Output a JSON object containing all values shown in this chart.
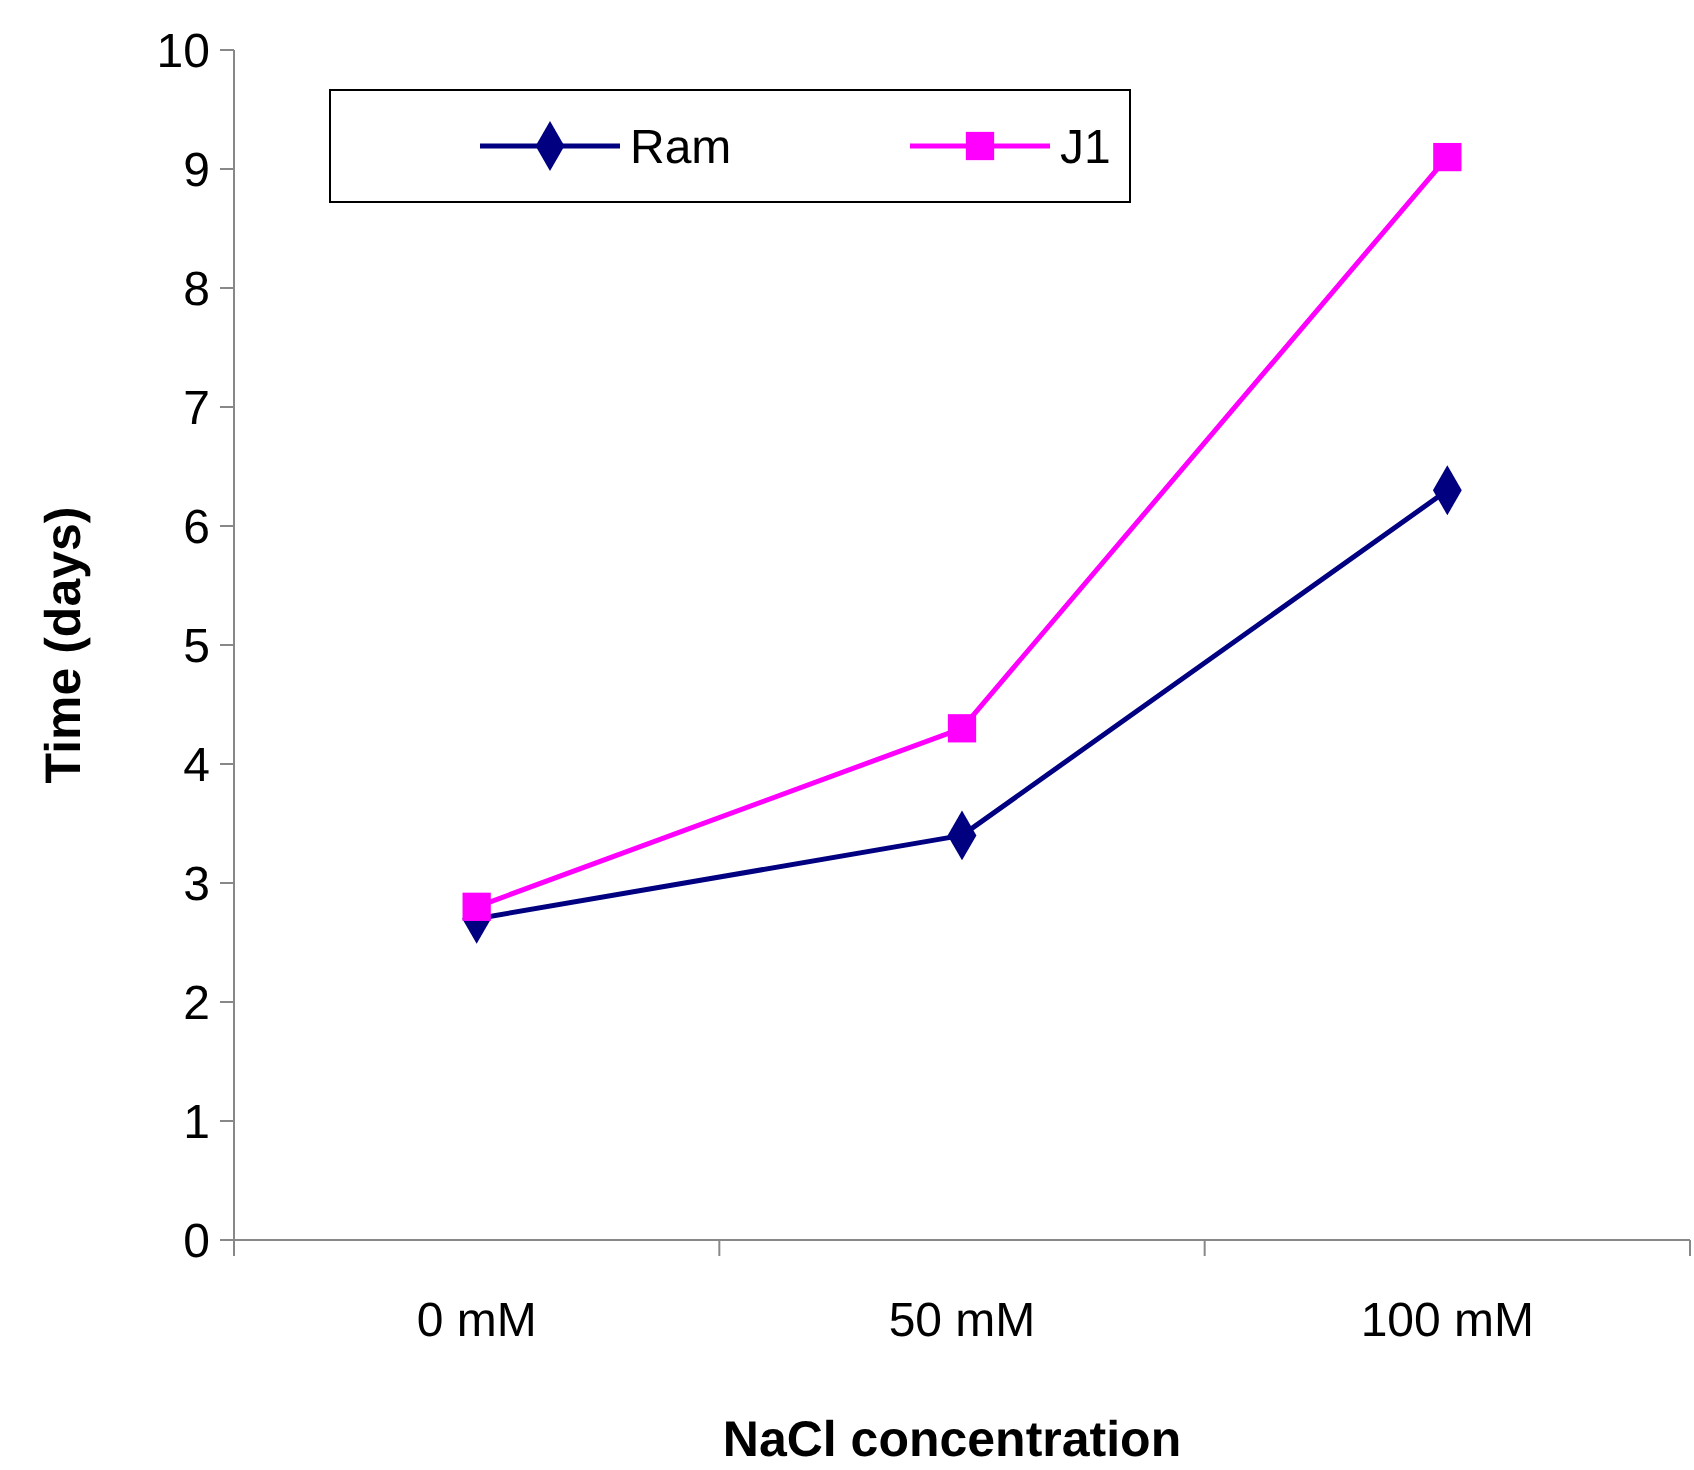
{
  "chart_data": {
    "type": "line",
    "xlabel": "NaCl concentration",
    "ylabel": "Time (days)",
    "categories": [
      "0 mM",
      "50 mM",
      "100 mM"
    ],
    "series": [
      {
        "name": "Ram",
        "color": "#000080",
        "values": [
          2.7,
          3.4,
          6.3
        ],
        "marker": "diamond"
      },
      {
        "name": "J1",
        "color": "#ff00ff",
        "values": [
          2.8,
          4.3,
          9.1
        ],
        "marker": "square"
      }
    ],
    "ylim": [
      0,
      10
    ],
    "yticks": [
      0,
      1,
      2,
      3,
      4,
      5,
      6,
      7,
      8,
      9,
      10
    ],
    "grid": false,
    "legend": "top left"
  }
}
